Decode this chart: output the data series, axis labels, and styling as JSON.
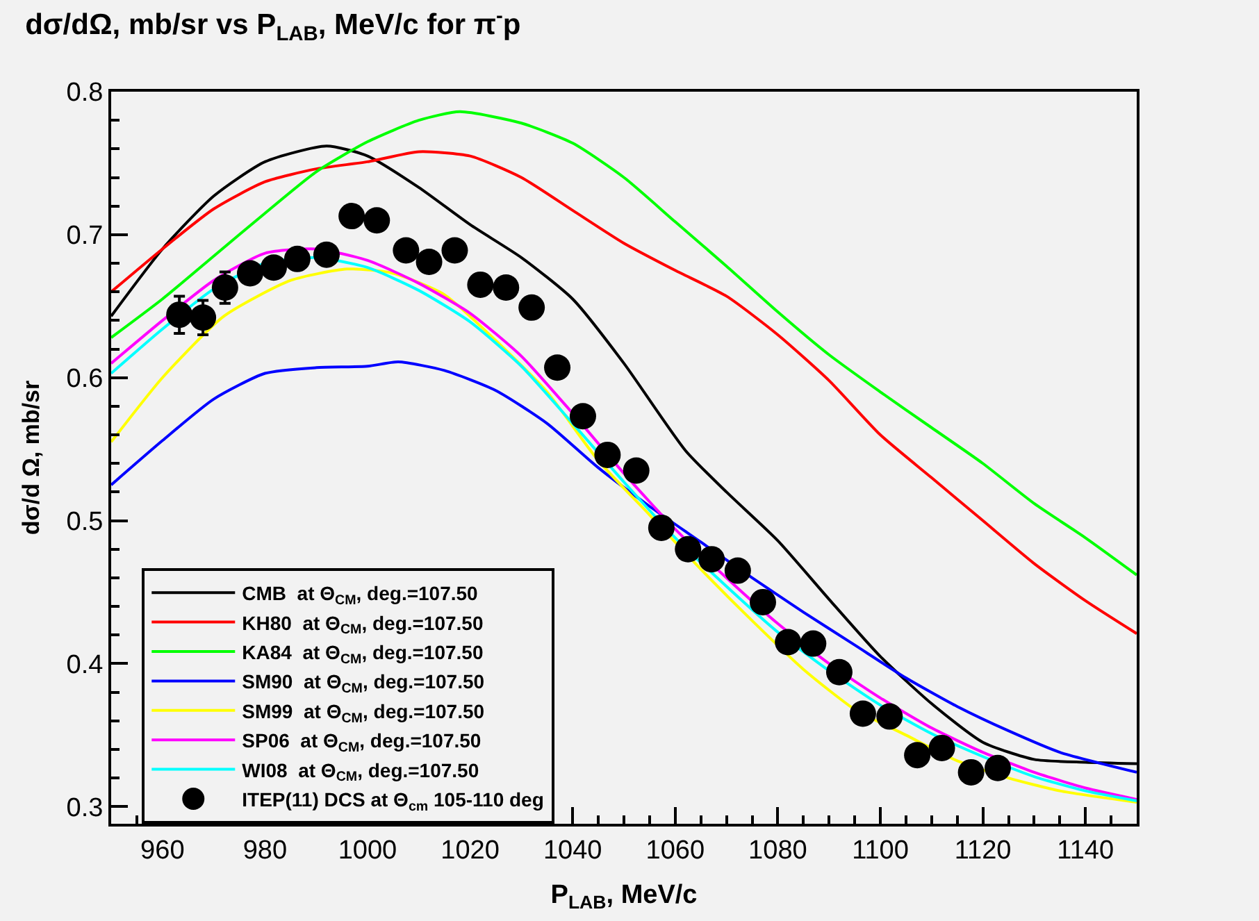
{
  "chart_data": {
    "type": "line",
    "title": "dσ/dΩ, mb/sr vs P$_{LAB}$, MeV/c for π$^{-}$p",
    "xlabel": "P$_{LAB}$, MeV/c",
    "ylabel": "dσ/d Ω, mb/sr",
    "xlim": [
      950,
      1150
    ],
    "xticks": [
      960,
      980,
      1000,
      1020,
      1040,
      1060,
      1080,
      1100,
      1120,
      1140
    ],
    "ylim": [
      0.288,
      0.8
    ],
    "yticks": [
      0.3,
      0.4,
      0.5,
      0.6,
      0.7,
      0.8
    ],
    "grid": false,
    "legend": "bottom left",
    "line_style": "solid",
    "series": [
      {
        "name": "CMB  at Θ$_{CM}$, deg.=107.50",
        "color": "#000000",
        "x": [
          950,
          960,
          970,
          980,
          992,
          1000,
          1010,
          1020,
          1030,
          1040,
          1050,
          1062,
          1070,
          1080,
          1090,
          1100,
          1110,
          1120,
          1130,
          1140,
          1150
        ],
        "values": [
          0.643,
          0.69,
          0.727,
          0.751,
          0.762,
          0.755,
          0.733,
          0.707,
          0.684,
          0.655,
          0.61,
          0.549,
          0.52,
          0.486,
          0.445,
          0.405,
          0.372,
          0.345,
          0.333,
          0.331,
          0.33
        ]
      },
      {
        "name": "KH80  at Θ$_{CM}$, deg.=107.50",
        "color": "#ff0000",
        "x": [
          950,
          960,
          970,
          980,
          990,
          1000,
          1010,
          1020,
          1030,
          1040,
          1050,
          1060,
          1070,
          1080,
          1090,
          1100,
          1110,
          1120,
          1130,
          1140,
          1150
        ],
        "values": [
          0.66,
          0.69,
          0.718,
          0.737,
          0.746,
          0.751,
          0.758,
          0.755,
          0.74,
          0.717,
          0.694,
          0.675,
          0.657,
          0.63,
          0.598,
          0.56,
          0.53,
          0.5,
          0.47,
          0.444,
          0.421
        ]
      },
      {
        "name": "KA84  at Θ$_{CM}$, deg.=107.50",
        "color": "#00ff00",
        "x": [
          950,
          960,
          970,
          980,
          990,
          1000,
          1010,
          1018,
          1030,
          1040,
          1050,
          1060,
          1070,
          1080,
          1090,
          1100,
          1110,
          1120,
          1130,
          1140,
          1150
        ],
        "values": [
          0.628,
          0.655,
          0.685,
          0.715,
          0.744,
          0.765,
          0.78,
          0.786,
          0.778,
          0.764,
          0.74,
          0.709,
          0.678,
          0.646,
          0.616,
          0.59,
          0.565,
          0.54,
          0.512,
          0.488,
          0.462
        ]
      },
      {
        "name": "SM90  at Θ$_{CM}$, deg.=107.50",
        "color": "#0000ff",
        "x": [
          950,
          960,
          970,
          980,
          990,
          1000,
          1006,
          1015,
          1025,
          1035,
          1045,
          1055,
          1065,
          1075,
          1085,
          1095,
          1105,
          1115,
          1125,
          1135,
          1150
        ],
        "values": [
          0.525,
          0.556,
          0.585,
          0.603,
          0.607,
          0.608,
          0.611,
          0.605,
          0.591,
          0.568,
          0.537,
          0.51,
          0.485,
          0.46,
          0.436,
          0.413,
          0.39,
          0.37,
          0.353,
          0.338,
          0.324
        ]
      },
      {
        "name": "SM99  at Θ$_{CM}$, deg.=107.50",
        "color": "#ffff00",
        "x": [
          950,
          960,
          972,
          985,
          996,
          1005,
          1015,
          1025,
          1035,
          1045,
          1055,
          1065,
          1075,
          1085,
          1095,
          1105,
          1115,
          1125,
          1135,
          1150
        ],
        "values": [
          0.555,
          0.6,
          0.643,
          0.668,
          0.676,
          0.673,
          0.658,
          0.626,
          0.59,
          0.542,
          0.504,
          0.466,
          0.43,
          0.396,
          0.368,
          0.35,
          0.332,
          0.32,
          0.311,
          0.303
        ]
      },
      {
        "name": "SP06  at Θ$_{CM}$, deg.=107.50",
        "color": "#ff00ff",
        "x": [
          950,
          960,
          970,
          980,
          990,
          1000,
          1010,
          1020,
          1030,
          1040,
          1050,
          1060,
          1070,
          1080,
          1090,
          1100,
          1110,
          1120,
          1130,
          1140,
          1150
        ],
        "values": [
          0.61,
          0.64,
          0.668,
          0.687,
          0.69,
          0.682,
          0.666,
          0.645,
          0.615,
          0.575,
          0.533,
          0.494,
          0.46,
          0.428,
          0.4,
          0.376,
          0.355,
          0.338,
          0.324,
          0.313,
          0.305
        ]
      },
      {
        "name": "WI08  at Θ$_{CM}$, deg.=107.50",
        "color": "#00ffff",
        "x": [
          950,
          960,
          970,
          980,
          990,
          1000,
          1010,
          1020,
          1030,
          1040,
          1050,
          1060,
          1070,
          1080,
          1090,
          1100,
          1110,
          1120,
          1130,
          1140,
          1150
        ],
        "values": [
          0.603,
          0.634,
          0.662,
          0.68,
          0.684,
          0.677,
          0.661,
          0.639,
          0.608,
          0.568,
          0.527,
          0.488,
          0.454,
          0.422,
          0.395,
          0.371,
          0.351,
          0.335,
          0.321,
          0.311,
          0.304
        ]
      },
      {
        "name": "ITEP(11) DCS at Θ$_{cm}$ 105-110 deg",
        "type": "scatter",
        "marker": "circle",
        "color": "#000000",
        "x": [
          963.3,
          967.9,
          972.2,
          977.1,
          981.7,
          986.3,
          992,
          996.9,
          1001.8,
          1007.5,
          1012,
          1017,
          1022,
          1027,
          1032,
          1037,
          1042,
          1046.8,
          1052.4,
          1057.3,
          1062.5,
          1067.1,
          1072.2,
          1077.1,
          1082,
          1086.9,
          1092,
          1096.6,
          1101.8,
          1107.2,
          1112,
          1117.7,
          1122.9
        ],
        "values": [
          0.644,
          0.642,
          0.663,
          0.673,
          0.677,
          0.683,
          0.686,
          0.713,
          0.71,
          0.689,
          0.681,
          0.689,
          0.665,
          0.663,
          0.649,
          0.607,
          0.573,
          0.546,
          0.535,
          0.495,
          0.48,
          0.473,
          0.465,
          0.443,
          0.415,
          0.414,
          0.394,
          0.365,
          0.363,
          0.336,
          0.341,
          0.324,
          0.327
        ],
        "errors": [
          0.013,
          0.012,
          0.011,
          null,
          null,
          null,
          null,
          null,
          null,
          null,
          null,
          null,
          null,
          null,
          null,
          null,
          null,
          null,
          null,
          null,
          null,
          null,
          null,
          null,
          null,
          null,
          null,
          null,
          null,
          null,
          null,
          null,
          null
        ]
      }
    ]
  }
}
